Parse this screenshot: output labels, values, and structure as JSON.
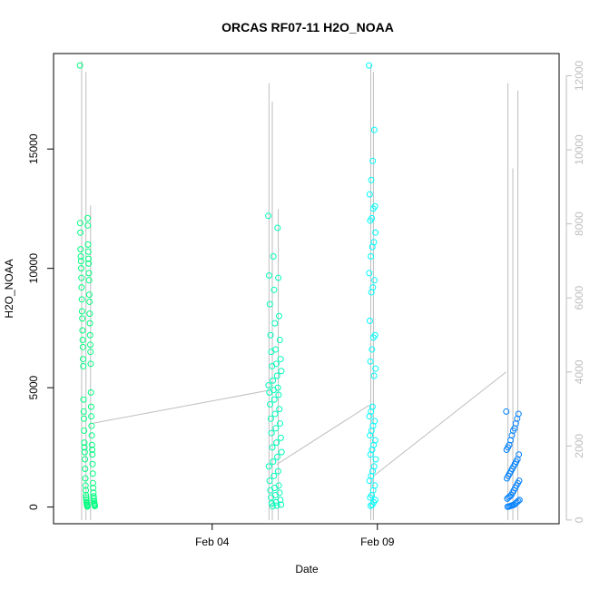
{
  "chart_data": {
    "type": "scatter",
    "title": "ORCAS RF07-11 H2O_NOAA",
    "xlabel": "Date",
    "ylabel": "H2O_NOAA",
    "x_ticks": [
      "Feb 04",
      "Feb 09"
    ],
    "x_tick_days": [
      4,
      9
    ],
    "xlim_days": [
      -0.8,
      14.5
    ],
    "ylim": [
      -700,
      19000
    ],
    "y_ticks": [
      0,
      5000,
      10000,
      15000
    ],
    "y2_ticks": [
      0,
      2000,
      4000,
      6000,
      8000,
      10000,
      12000
    ],
    "y2lim": [
      -100,
      12600
    ],
    "grid": false,
    "series_colors": [
      "#00ff80",
      "#00ffbb",
      "#00ffff",
      "#0080ff"
    ],
    "trace_color": "#bebebe",
    "y2_tick_color": "#bebebe",
    "flights": [
      {
        "x_start": 0.0,
        "x_end": 0.45,
        "points": [
          18500,
          12100,
          11900,
          11800,
          11500,
          11000,
          10800,
          10700,
          10500,
          10400,
          10300,
          10200,
          10000,
          9800,
          9600,
          9500,
          9200,
          8900,
          8700,
          8600,
          8200,
          8100,
          7900,
          7700,
          7400,
          7200,
          7000,
          6800,
          6700,
          6500,
          6200,
          6000,
          5900,
          4800,
          4500,
          4200,
          4000,
          3800,
          3700,
          3400,
          3200,
          3000,
          2700,
          2600,
          2500,
          2400,
          2300,
          2200,
          2000,
          1800,
          1600,
          1400,
          1200,
          1000,
          900,
          800,
          700,
          600,
          500,
          450,
          400,
          350,
          300,
          250,
          200,
          180,
          150,
          120,
          100,
          80,
          60,
          40,
          20
        ]
      },
      {
        "x_start": 5.7,
        "x_end": 6.1,
        "points": [
          12200,
          11700,
          10500,
          9700,
          9600,
          9100,
          8500,
          8000,
          7700,
          7200,
          7000,
          6600,
          6500,
          6200,
          6000,
          5900,
          5700,
          5500,
          5300,
          5100,
          5000,
          4900,
          4800,
          4700,
          4500,
          4300,
          4100,
          3900,
          3700,
          3500,
          3300,
          3100,
          2900,
          2700,
          2500,
          2300,
          2100,
          1900,
          1700,
          1500,
          1300,
          1100,
          900,
          800,
          700,
          600,
          500,
          400,
          300,
          200,
          150,
          100,
          60,
          30
        ]
      },
      {
        "x_start": 8.75,
        "x_end": 8.95,
        "points": [
          18500,
          15800,
          14500,
          13700,
          13100,
          12600,
          12500,
          12100,
          12000,
          11500,
          11100,
          10900,
          10500,
          9800,
          9500,
          9200,
          9000,
          7800,
          7200,
          7100,
          6600,
          6100,
          5800,
          5500,
          4200,
          4000,
          3800,
          3600,
          3400,
          3200,
          3000,
          2800,
          2600,
          2400,
          2200,
          2000,
          1700,
          1500,
          1300,
          1100,
          900,
          700,
          500,
          400,
          300,
          200,
          100,
          50
        ]
      },
      {
        "x_start": 12.9,
        "x_end": 13.3,
        "points": [
          4000,
          3900,
          3700,
          3500,
          3300,
          3200,
          3000,
          2800,
          2600,
          2500,
          2400,
          2200,
          2000,
          1900,
          1800,
          1700,
          1600,
          1500,
          1400,
          1300,
          1200,
          1100,
          1000,
          900,
          800,
          700,
          600,
          500,
          450,
          400,
          350,
          300,
          250,
          200,
          150,
          100,
          80,
          60,
          40,
          20,
          10
        ]
      }
    ],
    "trace_spikes": [
      {
        "x": 0.05,
        "y2_top": 12400
      },
      {
        "x": 0.18,
        "y2_top": 12100
      },
      {
        "x": 0.32,
        "y2_top": 8500
      },
      {
        "x": 5.72,
        "y2_top": 11800
      },
      {
        "x": 5.82,
        "y2_top": 11300
      },
      {
        "x": 6.0,
        "y2_top": 8400
      },
      {
        "x": 8.8,
        "y2_top": 12300
      },
      {
        "x": 8.88,
        "y2_top": 12100
      },
      {
        "x": 12.95,
        "y2_top": 11800
      },
      {
        "x": 13.1,
        "y2_top": 9500
      },
      {
        "x": 13.25,
        "y2_top": 11600
      }
    ],
    "trace_connectors": [
      {
        "from_x": 0.3,
        "from_y2": 2600,
        "to_x": 5.7,
        "to_y2": 3500
      },
      {
        "from_x": 5.95,
        "from_y2": 1500,
        "to_x": 8.75,
        "to_y2": 3100
      },
      {
        "from_x": 8.9,
        "from_y2": 1200,
        "to_x": 12.9,
        "to_y2": 4000
      }
    ]
  }
}
